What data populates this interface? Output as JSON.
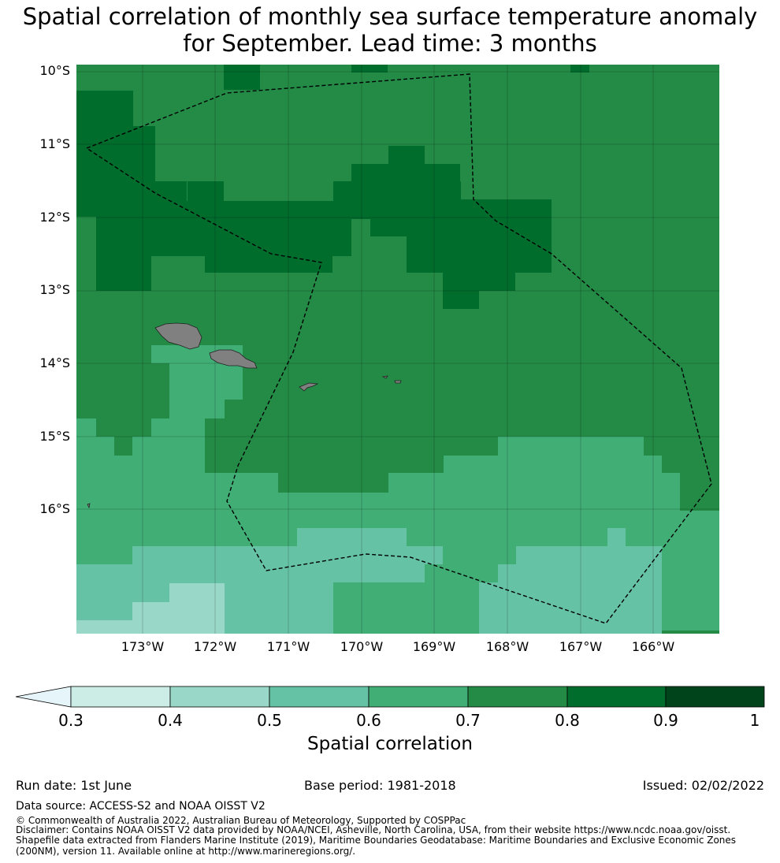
{
  "title_line1": "Spatial correlation of monthly sea surface temperature anomaly",
  "title_line2": "for September. Lead time: 3 months",
  "lat_labels": [
    "10°S",
    "11°S",
    "12°S",
    "13°S",
    "14°S",
    "15°S",
    "16°S"
  ],
  "lon_labels": [
    "173°W",
    "172°W",
    "171°W",
    "170°W",
    "169°W",
    "168°W",
    "167°W",
    "166°W"
  ],
  "colorbar": {
    "label": "Spatial correlation",
    "ticks": [
      "0.3",
      "0.4",
      "0.5",
      "0.6",
      "0.7",
      "0.8",
      "0.9",
      "1"
    ],
    "colors": [
      "#e5f5f9",
      "#ccece6",
      "#99d8c9",
      "#66c2a4",
      "#41ae76",
      "#238b45",
      "#006d2c",
      "#00441b"
    ],
    "extend": "min"
  },
  "map": {
    "land_color": "#808080",
    "eez_style": "dashed black"
  },
  "footer": {
    "run_date": "Run date: 1st June",
    "base_period": "Base period: 1981-2018",
    "issued": "Issued: 02/02/2022",
    "data_source": "Data source: ACCESS-S2 and NOAA OISST V2",
    "copyright": "© Commonwealth of Australia 2022, Australian Bureau of Meteorology, Supported by COSPPac",
    "disclaimer1": "Disclaimer: Contains NOAA OISST V2 data provided by NOAA/NCEI, Asheville, North Carolina, USA, from their website https://www.ncdc.noaa.gov/oisst.",
    "disclaimer2": "Shapefile data extracted from Flanders Marine Institute (2019), Maritime Boundaries Geodatabase: Maritime Boundaries and Exclusive Economic Zones",
    "disclaimer3": "(200NM), version 11. Available online at http://www.marineregions.org/."
  }
}
